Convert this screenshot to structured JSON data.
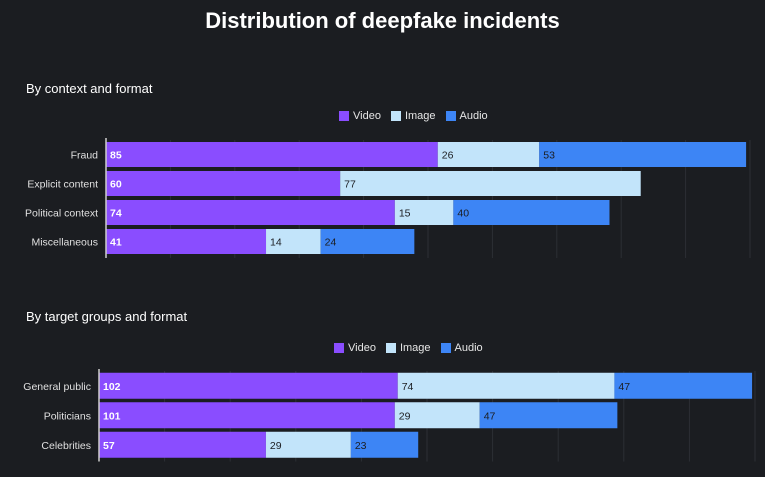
{
  "title": "Distribution of deepfake incidents",
  "colors": {
    "video": "#8a4dff",
    "image": "#c2e4fa",
    "audio": "#3d85f5",
    "grid": "#2c2f35",
    "axis": "#cfcfcf",
    "label": "#e0e0e0"
  },
  "chart_data": [
    {
      "type": "bar",
      "orientation": "horizontal",
      "stacked": true,
      "title": "By context and format",
      "legend": [
        "Video",
        "Image",
        "Audio"
      ],
      "legend_position": "top-center",
      "categories": [
        "Fraud",
        "Explicit content",
        "Political context",
        "Miscellaneous"
      ],
      "series": [
        {
          "name": "Video",
          "values": [
            85,
            60,
            74,
            41
          ]
        },
        {
          "name": "Image",
          "values": [
            26,
            77,
            15,
            14
          ]
        },
        {
          "name": "Audio",
          "values": [
            53,
            null,
            40,
            24
          ]
        }
      ],
      "xlim": [
        0,
        165
      ]
    },
    {
      "type": "bar",
      "orientation": "horizontal",
      "stacked": true,
      "title": "By target groups and format",
      "legend": [
        "Video",
        "Image",
        "Audio"
      ],
      "legend_position": "top-center",
      "categories": [
        "General public",
        "Politicians",
        "Celebrities"
      ],
      "series": [
        {
          "name": "Video",
          "values": [
            102,
            101,
            57
          ]
        },
        {
          "name": "Image",
          "values": [
            74,
            29,
            29
          ]
        },
        {
          "name": "Audio",
          "values": [
            47,
            47,
            23
          ]
        }
      ],
      "xlim": [
        0,
        224
      ]
    }
  ]
}
